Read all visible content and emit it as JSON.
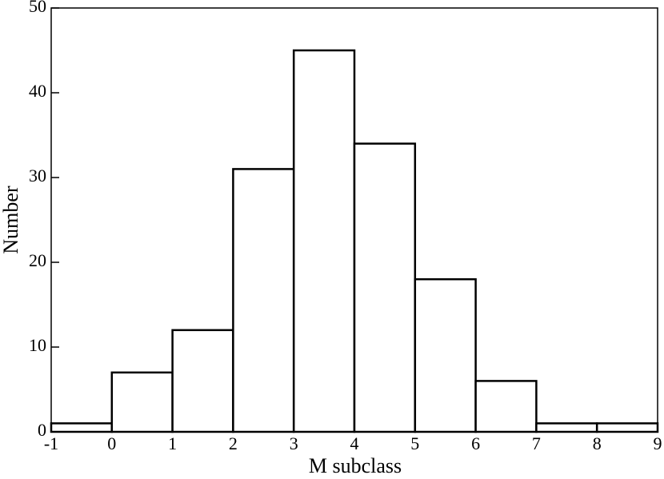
{
  "chart_data": {
    "type": "histogram",
    "x_label": "M subclass",
    "y_label": "Number",
    "bins": [
      -1,
      0,
      1,
      2,
      3,
      4,
      5,
      6,
      7,
      8,
      9
    ],
    "values": [
      1,
      7,
      12,
      31,
      45,
      34,
      18,
      6,
      1,
      1
    ],
    "color": "#ffffff",
    "edge_color": "#000000",
    "xlim": [
      -1,
      9
    ],
    "ylim": [
      0,
      50
    ],
    "xticks": [
      -1,
      0,
      1,
      2,
      3,
      4,
      5,
      6,
      7,
      8,
      9
    ],
    "yticks": [
      0,
      10,
      20,
      30,
      40,
      50
    ]
  }
}
